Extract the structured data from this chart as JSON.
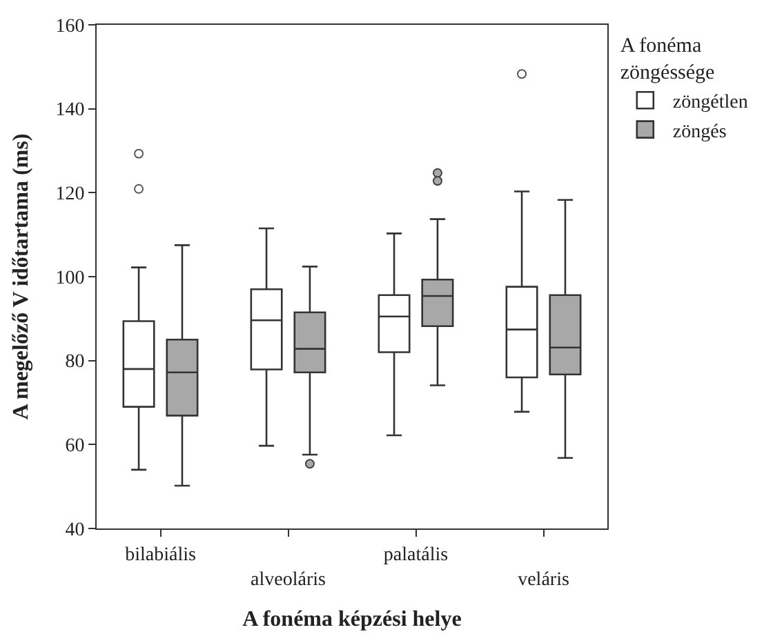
{
  "chart_data": {
    "type": "box",
    "xlabel": "A fonéma képzési helye",
    "ylabel": "A megelőző V időtartama (ms)",
    "legend_title": "A fonéma zöngéssége",
    "categories": [
      "bilabiális",
      "alveoláris",
      "palatális",
      "veláris"
    ],
    "ylim": [
      40,
      160
    ],
    "yticks": [
      40,
      60,
      80,
      100,
      120,
      140,
      160
    ],
    "legend": "top right",
    "series": [
      {
        "name": "zöngétlen",
        "color": "#ffffff",
        "boxes": [
          {
            "low": 54,
            "q1": 69,
            "median": 78,
            "q3": 89.4,
            "high": 102.2,
            "outliers": [
              129.3,
              120.9
            ]
          },
          {
            "low": 59.7,
            "q1": 77.9,
            "median": 89.6,
            "q3": 97,
            "high": 111.5
          },
          {
            "low": 62.2,
            "q1": 82,
            "median": 90.5,
            "q3": 95.6,
            "high": 110.3
          },
          {
            "low": 67.8,
            "q1": 76,
            "median": 87.4,
            "q3": 97.6,
            "high": 120.3,
            "outliers": [
              148.3
            ]
          }
        ]
      },
      {
        "name": "zöngés",
        "color": "#a8a8a8",
        "boxes": [
          {
            "low": 50.2,
            "q1": 66.9,
            "median": 77.2,
            "q3": 85,
            "high": 107.5
          },
          {
            "low": 57.6,
            "q1": 77.2,
            "median": 82.8,
            "q3": 91.5,
            "high": 102.4,
            "outliers": [
              55.4
            ]
          },
          {
            "low": 74.1,
            "q1": 88.2,
            "median": 95.4,
            "q3": 99.3,
            "high": 113.7,
            "outliers": [
              124.7,
              122.8
            ]
          },
          {
            "low": 56.8,
            "q1": 76.7,
            "median": 83.1,
            "q3": 95.6,
            "high": 118.3
          }
        ]
      }
    ]
  }
}
